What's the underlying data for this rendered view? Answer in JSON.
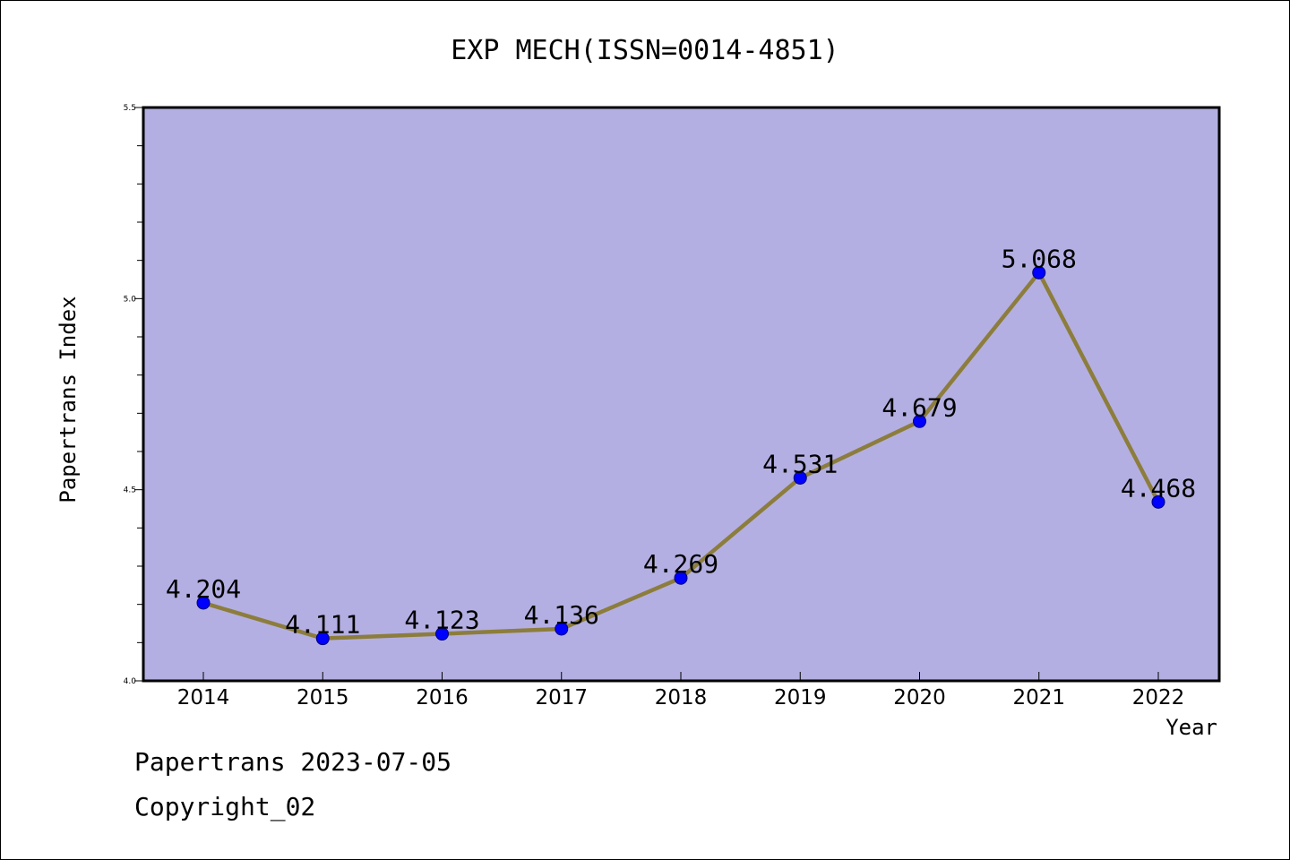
{
  "chart_data": {
    "type": "line",
    "title": "EXP MECH(ISSN=0014-4851)",
    "xlabel": "Year",
    "ylabel": "Papertrans Index",
    "categories": [
      "2014",
      "2015",
      "2016",
      "2017",
      "2018",
      "2019",
      "2020",
      "2021",
      "2022"
    ],
    "series": [
      {
        "values": [
          4.204,
          4.111,
          4.123,
          4.136,
          4.269,
          4.531,
          4.679,
          5.068,
          4.468
        ],
        "labels": [
          "4.204",
          "4.111",
          "4.123",
          "4.136",
          "4.269",
          "4.531",
          "4.679",
          "5.068",
          "4.468"
        ]
      }
    ],
    "ylim": [
      4.0,
      5.5
    ],
    "yticks": [
      "4.0",
      "4.5",
      "5.0",
      "5.5"
    ],
    "grid": false,
    "colors": {
      "plot_background": "#b4afe2",
      "line": "#8c7d3c",
      "marker": "#0000ff",
      "marker_edge": "#00007a"
    }
  },
  "footer": {
    "date": "Papertrans 2023-07-05",
    "copyright": "Copyright_02"
  }
}
